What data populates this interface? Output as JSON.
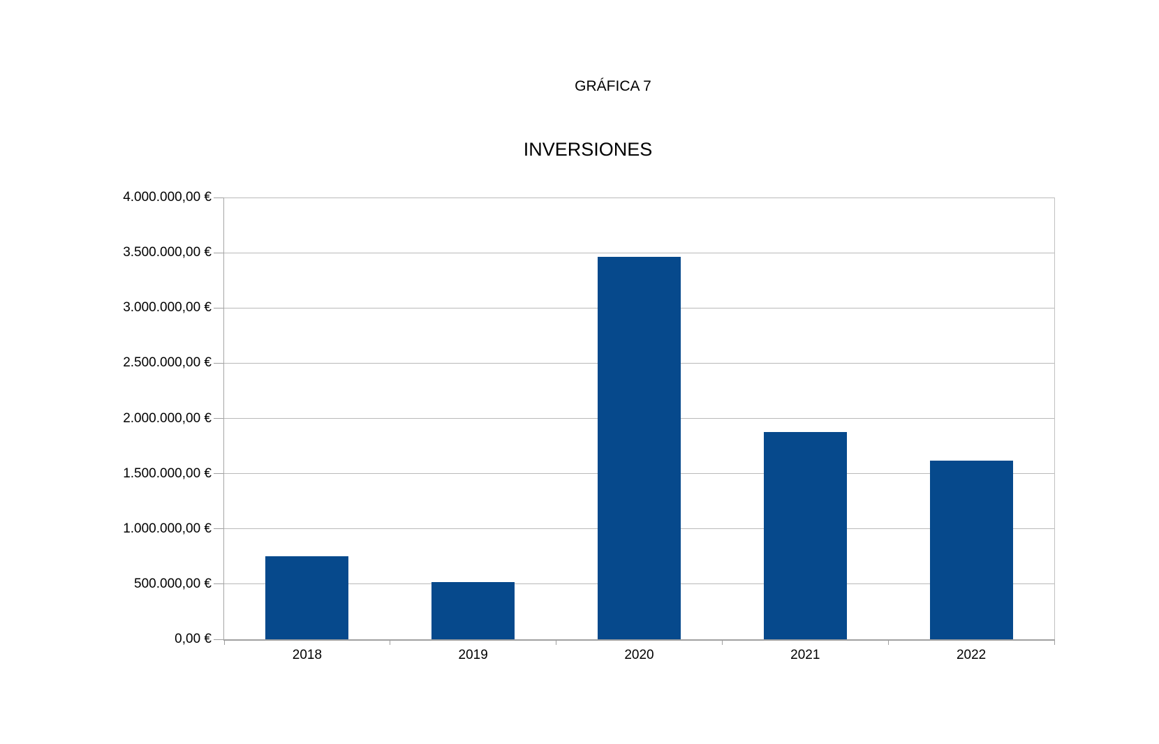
{
  "page": {
    "caption": "GRÁFICA 7"
  },
  "chart_data": {
    "type": "bar",
    "title": "INVERSIONES",
    "categories": [
      "2018",
      "2019",
      "2020",
      "2021",
      "2022"
    ],
    "values": [
      750000,
      520000,
      3460000,
      1875000,
      1620000
    ],
    "value_unit": "EUR",
    "ylim": [
      0,
      4000000
    ],
    "ytick_step": 500000,
    "ytick_labels": [
      "4.000.000,00 €",
      "3.500.000,00 €",
      "3.000.000,00 €",
      "2.500.000,00 €",
      "2.000.000,00 €",
      "1.500.000,00 €",
      "1.000.000,00 €",
      "500.000,00 €",
      "0,00 €"
    ],
    "xlabel": "",
    "ylabel": "",
    "legend": "none",
    "grid": true,
    "bar_color": "#06498c",
    "gridline_color": "#b9b9b9",
    "axis_color": "#9e9e9e",
    "text_color": "#000000"
  }
}
